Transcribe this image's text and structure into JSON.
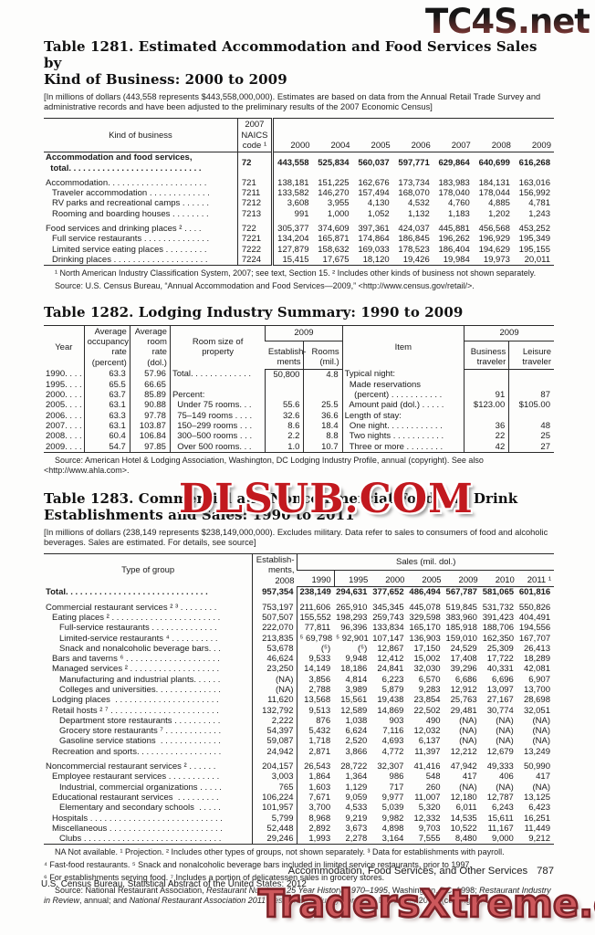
{
  "watermarks": {
    "top": "TC4S.net",
    "middle": "DLSUB.COM",
    "bottom": "TradersXtreme.com",
    "top_color_start": "#161616",
    "top_color_end": "#8a3d3a",
    "middle_color": "#c2191f",
    "bottom_color": "#cd585c"
  },
  "t1281": {
    "title_line1": "Table 1281. Estimated Accommodation and Food Services Sales by",
    "title_line2": "Kind of Business: 2000 to 2009",
    "note": "[In millions of dollars (443,558 represents $443,558,000,000). Estimates are based on data from the Annual Retail Trade Survey and administrative records and have been adjusted to the preliminary results of the 2007 Economic Census]",
    "head": {
      "col1": "Kind of business",
      "col2": "2007\nNAICS\ncode ¹",
      "years": [
        "2000",
        "2004",
        "2005",
        "2006",
        "2007",
        "2008",
        "2009"
      ]
    },
    "rows": [
      {
        "cls": "total",
        "c": [
          "Accommodation and food services,\n  total. . . . . . . . . . . . . . . . . . . . . . . . . . . .",
          "72",
          "443,558",
          "525,834",
          "560,037",
          "597,771",
          "629,864",
          "640,699",
          "616,268"
        ]
      },
      {
        "cls": "gap",
        "c": [
          "Accommodation. . . . . . . . . . . . . . . . . . . . .",
          "721",
          "138,181",
          "151,225",
          "162,676",
          "173,734",
          "183,983",
          "184,131",
          "163,016"
        ]
      },
      {
        "cls": "i1",
        "c": [
          "Traveler accommodation . . . . . . . . . . . . .",
          "7211",
          "133,582",
          "146,270",
          "157,494",
          "168,070",
          "178,040",
          "178,044",
          "156,992"
        ]
      },
      {
        "cls": "i1",
        "c": [
          "RV parks and recreational camps . . . . . .",
          "7212",
          "3,608",
          "3,955",
          "4,130",
          "4,532",
          "4,760",
          "4,885",
          "4,781"
        ]
      },
      {
        "cls": "i1",
        "c": [
          "Rooming and boarding houses . . . . . . . .",
          "7213",
          "991",
          "1,000",
          "1,052",
          "1,132",
          "1,183",
          "1,202",
          "1,243"
        ]
      },
      {
        "cls": "gap",
        "c": [
          "Food services and drinking places ² . . . .",
          "722",
          "305,377",
          "374,609",
          "397,361",
          "424,037",
          "445,881",
          "456,568",
          "453,252"
        ]
      },
      {
        "cls": "i1",
        "c": [
          "Full service restaurants . . . . . . . . . . . . . .",
          "7221",
          "134,204",
          "165,871",
          "174,864",
          "186,845",
          "196,262",
          "196,929",
          "195,349"
        ]
      },
      {
        "cls": "i1",
        "c": [
          "Limited service eating places . . . . . . . . .",
          "7222",
          "127,879",
          "158,632",
          "169,033",
          "178,523",
          "186,404",
          "194,629",
          "195,155"
        ]
      },
      {
        "cls": "i1",
        "c": [
          "Drinking places . . . . . . . . . . . . . . . . . . . .",
          "7224",
          "15,415",
          "17,675",
          "18,120",
          "19,426",
          "19,984",
          "19,973",
          "20,011"
        ]
      }
    ],
    "footnote": "¹ North American Industry Classification System, 2007; see text, Section 15. ² Includes other kinds of business not shown separately.",
    "source": "Source: U.S. Census Bureau, “Annual Accommodation and Food Services—2009,” <http://www.census.gov/retail/>."
  },
  "t1282": {
    "title": "Table 1282. Lodging Industry Summary: 1990 to 2009",
    "head": {
      "year": "Year",
      "occupancy": "Average\noccupancy\nrate\n(percent)",
      "room_rate": "Average\nroom rate\n(dol.)",
      "room_size": "Room size of\nproperty",
      "span_left": "2009",
      "establishments": "Establish-\nments",
      "rooms": "Rooms\n(mil.)",
      "item": "Item",
      "span_right": "2009",
      "business": "Business\ntraveler",
      "leisure": "Leisure\ntraveler"
    },
    "rows": [
      {
        "c": [
          "1990. . . . .",
          "63.3",
          "57.96",
          "Total. . . . . . . . . . . . .",
          "50,800",
          "4.8",
          "Typical night:",
          "",
          ""
        ]
      },
      {
        "c": [
          "1995. . . . .",
          "65.5",
          "66.65",
          "",
          "",
          "",
          "  Made reservations",
          "",
          ""
        ]
      },
      {
        "c": [
          "2000. . . . .",
          "63.7",
          "85.89",
          "Percent:",
          "",
          "",
          "    (percent) . . . . . . . . . . .",
          "91",
          "87"
        ]
      },
      {
        "c": [
          "2005. . . . .",
          "63.1",
          "90.88",
          "  Under 75 rooms. . .",
          "55.6",
          "25.5",
          "  Amount paid (dol.) . . . . .",
          "$123.00",
          "$105.00"
        ]
      },
      {
        "c": [
          "2006. . . . .",
          "63.3",
          "97.78",
          "  75–149 rooms . . . .",
          "32.6",
          "36.6",
          "Length of stay:",
          "",
          ""
        ]
      },
      {
        "c": [
          "2007. . . . .",
          "63.1",
          "103.87",
          "  150–299 rooms . . .",
          "8.6",
          "18.4",
          "  One night. . . . . . . . . . . .",
          "36",
          "48"
        ]
      },
      {
        "c": [
          "2008. . . . .",
          "60.4",
          "106.84",
          "  300–500 rooms . . .",
          "2.2",
          "8.8",
          "  Two nights . . . . . . . . . . .",
          "22",
          "25"
        ]
      },
      {
        "c": [
          "2009. . . . .",
          "54.7",
          "97.85",
          "  Over 500 rooms. . .",
          "1.0",
          "10.7",
          "  Three or more . . . . . . . .",
          "42",
          "27"
        ]
      }
    ],
    "source": "Source: American Hotel & Lodging Association, Washington, DC Lodging Industry Profile, annual (copyright). See also <http://www.ahla.com>."
  },
  "t1283": {
    "title_line1": "Table 1283. Commercial and Noncommercial Food and Drink",
    "title_line2": "Establishments and Sales: 1990 to 2011",
    "note": "[In millions of dollars (238,149 represents $238,149,000,000). Excludes military. Data refer to sales to consumers of food and alcoholic beverages. Sales are estimated. For details, see source]",
    "head": {
      "col1": "Type of group",
      "col2": "Establish-\nments,\n2008",
      "sales_span": "Sales (mil. dol.)",
      "years": [
        "1990",
        "1995",
        "2000",
        "2005",
        "2009",
        "2010",
        "2011 ¹"
      ]
    },
    "rows": [
      {
        "cls": "total",
        "c": [
          "Total. . . . . . . . . . . . . . . . . . . . . . . . . . . . . .",
          "957,354",
          "238,149",
          "294,631",
          "377,652",
          "486,494",
          "567,787",
          "581,065",
          "601,816"
        ]
      },
      {
        "cls": "gap",
        "c": [
          "Commercial restaurant services ² ³ . . . . . . . .",
          "753,197",
          "211,606",
          "265,910",
          "345,345",
          "445,078",
          "519,845",
          "531,732",
          "550,826"
        ]
      },
      {
        "cls": "i1",
        "c": [
          "Eating places ² . . . . . . . . . . . . . . . . . . . . . . .",
          "507,507",
          "155,552",
          "198,293",
          "259,743",
          "329,598",
          "383,960",
          "391,423",
          "404,491"
        ]
      },
      {
        "cls": "i2",
        "c": [
          "Full-service restaurants . . . . . . . . . . . . . .",
          "222,070",
          "77,811",
          "96,396",
          "133,834",
          "165,170",
          "185,918",
          "188,706",
          "194,556"
        ]
      },
      {
        "cls": "i2",
        "c": [
          "Limited-service restaurants ⁴ . . . . . . . . . .",
          "213,835",
          "⁵ 69,798",
          "⁵ 92,901",
          "107,147",
          "136,903",
          "159,010",
          "162,350",
          "167,707"
        ]
      },
      {
        "cls": "i2",
        "c": [
          "Snack and nonalcoholic beverage bars. . .",
          "53,678",
          "(⁵)",
          "(⁵)",
          "12,867",
          "17,150",
          "24,529",
          "25,309",
          "26,413"
        ]
      },
      {
        "cls": "i1",
        "c": [
          "Bars and taverns ⁶ . . . . . . . . . . . . . . . . . . . .",
          "46,624",
          "9,533",
          "9,948",
          "12,412",
          "15,002",
          "17,408",
          "17,722",
          "18,289"
        ]
      },
      {
        "cls": "i1",
        "c": [
          "Managed services ² . . . . . . . . . . . . . . . . . . .",
          "23,250",
          "14,149",
          "18,186",
          "24,841",
          "32,030",
          "39,296",
          "40,331",
          "42,081"
        ]
      },
      {
        "cls": "i2",
        "c": [
          "Manufacturing and industrial plants. . . . . .",
          "(NA)",
          "3,856",
          "4,814",
          "6,223",
          "6,570",
          "6,686",
          "6,696",
          "6,907"
        ]
      },
      {
        "cls": "i2",
        "c": [
          "Colleges and universities. . . . . . . . . . . . . .",
          "(NA)",
          "2,788",
          "3,989",
          "5,879",
          "9,283",
          "12,912",
          "13,097",
          "13,700"
        ]
      },
      {
        "cls": "i1",
        "c": [
          "Lodging places  . . . . . . . . . . . . . . . . . . . . . .",
          "11,620",
          "13,568",
          "15,561",
          "19,438",
          "23,854",
          "25,763",
          "27,167",
          "28,698"
        ]
      },
      {
        "cls": "i1",
        "c": [
          "Retail hosts ² ⁷ . . . . . . . . . . . . . . . . . . . . . . .",
          "132,792",
          "9,513",
          "12,589",
          "14,869",
          "22,502",
          "29,481",
          "30,774",
          "32,051"
        ]
      },
      {
        "cls": "i2",
        "c": [
          "Department store restaurants . . . . . . . . . .",
          "2,222",
          "876",
          "1,038",
          "903",
          "490",
          "(NA)",
          "(NA)",
          "(NA)"
        ]
      },
      {
        "cls": "i2",
        "c": [
          "Grocery store restaurants ⁷ . . . . . . . . . . . .",
          "54,397",
          "5,432",
          "6,624",
          "7,116",
          "12,032",
          "(NA)",
          "(NA)",
          "(NA)"
        ]
      },
      {
        "cls": "i2",
        "c": [
          "Gasoline service stations  . . . . . . . . . . . . .",
          "59,087",
          "1,718",
          "2,520",
          "4,693",
          "6,137",
          "(NA)",
          "(NA)",
          "(NA)"
        ]
      },
      {
        "cls": "i1",
        "c": [
          "Recreation and sports. . . . . . . . . . . . . . . . . .",
          "24,942",
          "2,871",
          "3,866",
          "4,772",
          "11,397",
          "12,212",
          "12,679",
          "13,249"
        ]
      },
      {
        "cls": "gap",
        "c": [
          "Noncommercial restaurant services ² . . . . . .",
          "204,157",
          "26,543",
          "28,722",
          "32,307",
          "41,416",
          "47,942",
          "49,333",
          "50,990"
        ]
      },
      {
        "cls": "i1",
        "c": [
          "Employee restaurant services . . . . . . . . . . .",
          "3,003",
          "1,864",
          "1,364",
          "986",
          "548",
          "417",
          "406",
          "417"
        ]
      },
      {
        "cls": "i2",
        "c": [
          "Industrial, commercial organizations . . . . .",
          "765",
          "1,603",
          "1,129",
          "717",
          "260",
          "(NA)",
          "(NA)",
          "(NA)"
        ]
      },
      {
        "cls": "i1",
        "c": [
          "Educational restaurant services  . . . . . . . . .",
          "106,224",
          "7,671",
          "9,059",
          "9,977",
          "11,007",
          "12,180",
          "12,787",
          "13,125"
        ]
      },
      {
        "cls": "i2",
        "c": [
          "Elementary and secondary schools  . . . . .",
          "101,957",
          "3,700",
          "4,533",
          "5,039",
          "5,320",
          "6,011",
          "6,243",
          "6,423"
        ]
      },
      {
        "cls": "i1",
        "c": [
          "Hospitals . . . . . . . . . . . . . . . . . . . . . . . . . . . .",
          "5,799",
          "8,968",
          "9,219",
          "9,982",
          "12,332",
          "14,535",
          "15,611",
          "16,251"
        ]
      },
      {
        "cls": "i1",
        "c": [
          "Miscellaneous . . . . . . . . . . . . . . . . . . . . . . . .",
          "52,448",
          "2,892",
          "3,673",
          "4,898",
          "9,703",
          "10,522",
          "11,167",
          "11,449"
        ]
      },
      {
        "cls": "i2",
        "c": [
          "Clubs . . . . . . . . . . . . . . . . . . . . . . . . . . . . .",
          "29,246",
          "1,993",
          "2,278",
          "3,164",
          "7,555",
          "8,480",
          "9,000",
          "9,212"
        ]
      }
    ],
    "footnote1": "NA Not available. ¹ Projection. ² Includes other types of groups, not shown separately. ³ Data for establishments with payroll.",
    "footnote2": "⁴ Fast-food restaurants. ⁵ Snack and nonalcoholic beverage bars included in limited service restaurants, prior to 1997.",
    "footnote3": "⁶ For establishments serving food. ⁷ Includes a portion of delicatessen sales in grocery stores.",
    "source": {
      "p1": "Source: National Restaurant Association, ",
      "p2": "Restaurant Numbers: 25 Year History, 1970–1995",
      "p3": ", Washington, DC, 1998; ",
      "p4": "Restaurant Industry in Review",
      "p5": ", annual; and ",
      "p6": "National Restaurant Association 2011 Restaurant Industry Forecast",
      "p7": ", December 2010, (copyright)."
    }
  },
  "footer": {
    "section_title": "Accommodation, Food Services, and Other Services",
    "page_number": "787",
    "source_line": "U.S. Census Bureau, Statistical Abstract of the United States: 2012"
  }
}
